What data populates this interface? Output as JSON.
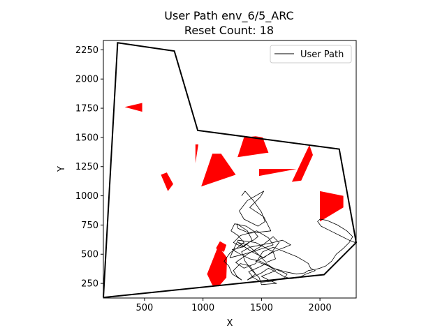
{
  "chart_data": {
    "type": "line",
    "title_line1": "User Path env_6/5_ARC",
    "title_line2": "Reset Count: 18",
    "xlabel": "X",
    "ylabel": "Y",
    "xlim": [
      148,
      2310
    ],
    "ylim": [
      125,
      2330
    ],
    "xticks": [
      500,
      1000,
      1500,
      2000
    ],
    "yticks": [
      250,
      500,
      750,
      1000,
      1250,
      1500,
      1750,
      2000,
      2250
    ],
    "legend": {
      "placement": "top-right",
      "entries": [
        "User Path"
      ]
    },
    "grid": false,
    "colors": {
      "boundary": "#000000",
      "obstacle": "#ff0000",
      "path": "#000000"
    },
    "boundary": [
      [
        148,
        130
      ],
      [
        270,
        2310
      ],
      [
        755,
        2240
      ],
      [
        955,
        1560
      ],
      [
        2165,
        1400
      ],
      [
        2310,
        600
      ],
      [
        2035,
        325
      ],
      [
        148,
        130
      ]
    ],
    "obstacles": [
      [
        [
          330,
          1760
        ],
        [
          480,
          1795
        ],
        [
          480,
          1720
        ]
      ],
      [
        [
          935,
          1440
        ],
        [
          960,
          1440
        ],
        [
          935,
          1280
        ]
      ],
      [
        [
          1080,
          1360
        ],
        [
          1155,
          1360
        ],
        [
          1280,
          1180
        ],
        [
          985,
          1080
        ]
      ],
      [
        [
          640,
          1180
        ],
        [
          690,
          1200
        ],
        [
          745,
          1100
        ],
        [
          700,
          1040
        ]
      ],
      [
        [
          1350,
          1500
        ],
        [
          1450,
          1510
        ],
        [
          1510,
          1500
        ],
        [
          1560,
          1370
        ],
        [
          1295,
          1330
        ]
      ],
      [
        [
          1480,
          1230
        ],
        [
          1800,
          1230
        ],
        [
          1480,
          1170
        ]
      ],
      [
        [
          1910,
          1435
        ],
        [
          1940,
          1350
        ],
        [
          1840,
          1130
        ],
        [
          1760,
          1120
        ]
      ],
      [
        [
          2000,
          1040
        ],
        [
          2200,
          1000
        ],
        [
          2200,
          900
        ],
        [
          2000,
          780
        ]
      ],
      [
        [
          1130,
          570
        ],
        [
          1205,
          470
        ],
        [
          1200,
          300
        ],
        [
          1135,
          225
        ],
        [
          1080,
          235
        ],
        [
          1035,
          330
        ]
      ],
      [
        [
          1145,
          610
        ],
        [
          1200,
          580
        ],
        [
          1180,
          520
        ],
        [
          1110,
          550
        ]
      ]
    ],
    "series": [
      {
        "name": "User Path",
        "x": [
          1330,
          1360,
          1430,
          1500,
          1530,
          1470,
          1350,
          1310,
          1380,
          1520,
          1490,
          1400,
          1520,
          1580,
          1400,
          1300,
          1290,
          1380,
          1420,
          1340,
          1260,
          1320,
          1460,
          1560,
          1600,
          1480,
          1350,
          1230,
          1270,
          1300,
          1450,
          1600,
          1620,
          1540,
          1470,
          1380,
          1300,
          1420,
          1520,
          1590,
          1650,
          1600,
          1500,
          1380,
          1280,
          1350,
          1450,
          1510,
          1600,
          1700,
          1800,
          1870,
          1900,
          1920,
          1960,
          1880,
          1820,
          1750,
          1690,
          1620,
          1560,
          1500,
          1420,
          1380,
          1450,
          1400,
          1320,
          1260,
          1290,
          1330,
          1250,
          1220,
          1180,
          1230,
          1300,
          1350,
          1300,
          1240,
          1270,
          1370,
          1430,
          1470,
          1430,
          1390,
          1330,
          1250,
          1320,
          1400,
          1490,
          1560,
          1620,
          1550,
          1500,
          1560,
          1630,
          1500,
          1480,
          1420,
          1360,
          1330,
          1400,
          1500,
          1600,
          1680,
          1750,
          1700,
          1600,
          1530,
          1450,
          1560,
          1650,
          1720,
          1700,
          1600,
          1500,
          1430,
          1390,
          1480,
          1540,
          1600,
          1700,
          1800,
          1870,
          1900,
          1960,
          2000,
          2050,
          2100,
          2140,
          2200,
          2250,
          2280,
          2230,
          2150,
          2060,
          2000,
          1980,
          2010,
          2090,
          2170,
          2250,
          2300,
          2300
        ],
        "y": [
          1000,
          1040,
          960,
          860,
          780,
          740,
          800,
          870,
          960,
          1040,
          990,
          900,
          820,
          700,
          680,
          720,
          760,
          700,
          620,
          560,
          600,
          660,
          700,
          640,
          580,
          540,
          500,
          470,
          560,
          620,
          600,
          520,
          460,
          430,
          500,
          580,
          600,
          520,
          470,
          520,
          600,
          650,
          570,
          500,
          430,
          380,
          420,
          520,
          560,
          520,
          480,
          440,
          420,
          380,
          360,
          330,
          300,
          290,
          310,
          350,
          380,
          340,
          300,
          280,
          330,
          400,
          420,
          360,
          310,
          280,
          330,
          400,
          440,
          510,
          560,
          600,
          660,
          700,
          760,
          740,
          700,
          650,
          620,
          600,
          560,
          540,
          500,
          460,
          440,
          400,
          360,
          330,
          310,
          280,
          250,
          240,
          300,
          360,
          440,
          520,
          560,
          580,
          600,
          620,
          580,
          560,
          520,
          480,
          440,
          400,
          360,
          330,
          300,
          270,
          260,
          300,
          350,
          390,
          420,
          380,
          350,
          330,
          340,
          360,
          370,
          380,
          400,
          440,
          500,
          550,
          600,
          650,
          700,
          750,
          790,
          800,
          780,
          740,
          700,
          660,
          620,
          600,
          610
        ]
      }
    ]
  }
}
